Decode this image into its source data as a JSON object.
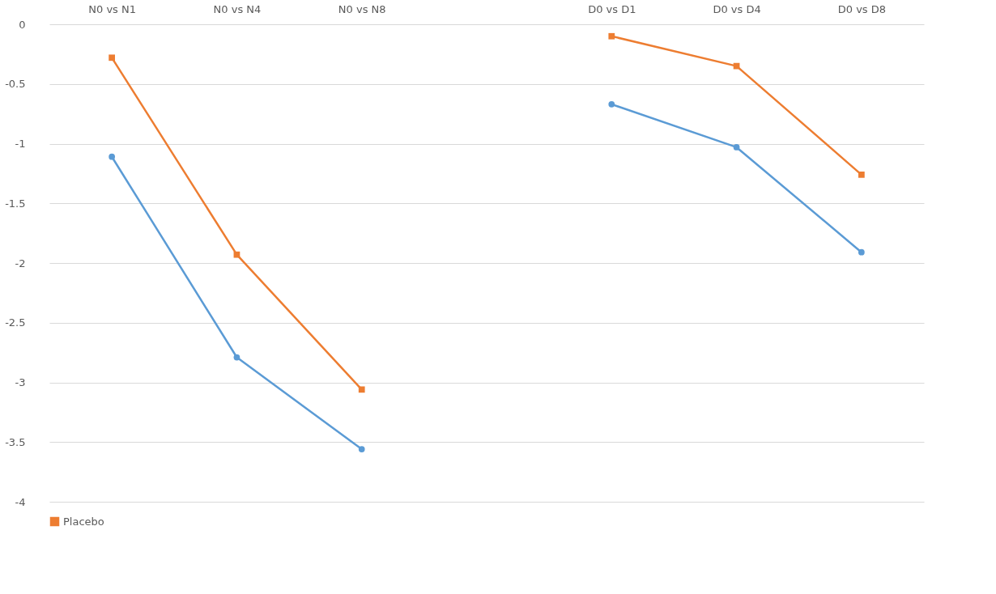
{
  "chart_data": {
    "type": "line",
    "categories": [
      "N0 vs N1",
      "N0 vs N4",
      "N0 vs N8",
      null,
      "D0 vs D1",
      "D0 vs D4",
      "D0 vs D8"
    ],
    "series": [
      {
        "color": "#5b9bd5",
        "marker": "circle",
        "values": [
          -1.11,
          -2.79,
          -3.56,
          null,
          -0.67,
          -1.03,
          -1.91
        ]
      },
      {
        "name": "Placebo",
        "color": "#ed7d31",
        "marker": "square",
        "values": [
          -0.28,
          -1.93,
          -3.06,
          null,
          -0.1,
          -0.35,
          -1.26
        ]
      }
    ],
    "ylim": [
      -4,
      0
    ],
    "yticks": [
      0,
      -0.5,
      -1,
      -1.5,
      -2,
      -2.5,
      -3,
      -3.5,
      -4
    ],
    "grid": "y",
    "legend": "bottom"
  }
}
